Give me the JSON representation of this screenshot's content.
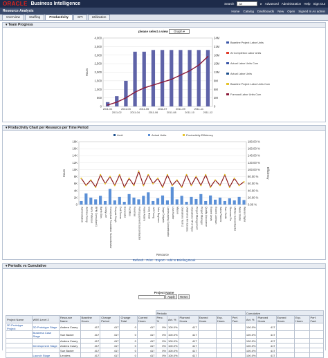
{
  "topbar": {
    "logo": "ORACLE",
    "app": "Business Intelligence",
    "search_label": "Search",
    "search_value": "All",
    "links": [
      "Advanced",
      "Administration",
      "Help",
      "Sign Out"
    ]
  },
  "navbar": {
    "title": "Resource Analysis",
    "items": [
      "Home",
      "Catalog",
      "Dashboards",
      "New",
      "Open",
      "Signed In As admin"
    ]
  },
  "tabs": [
    "Overview",
    "Staffing",
    "Productivity",
    "SPI",
    "Utilization"
  ],
  "team": {
    "header": "Team Progress",
    "view_label": "please select a view",
    "view_value": "Graph",
    "legend": [
      "Baseline Project Labor Units",
      "At Completion Labor Units",
      "Actual Labor Units Cum",
      "Actual Labor Units",
      "Baseline Project Labor Units Cum",
      "Forecast Labor Units Cum"
    ],
    "y_left_label": "Hours",
    "y_left_ticks": [
      "0",
      "500",
      "1,000",
      "1,500",
      "2,000",
      "2,500",
      "3,000",
      "3,500",
      "4,000"
    ],
    "y_right_ticks": [
      "0",
      "3M",
      "6M",
      "9M",
      "12M",
      "15M",
      "18M",
      "21M",
      "24M"
    ],
    "x_ticks": [
      "2011-01",
      "2011-02",
      "2011-03",
      "2011-04",
      "2011-05",
      "2011-06",
      "2011-07",
      "2011-08",
      "2011-09",
      "2011-10",
      "2011-11",
      "2011-12"
    ]
  },
  "prod": {
    "header": "Productivity Chart per Resource per Time Period",
    "legend": [
      "Limit",
      "Actual Units",
      "Productivity Efficiency"
    ],
    "y_left_label": "Hours",
    "y_right_label": "Efficiency",
    "x_label": "Resource",
    "y_left_ticks": [
      "0",
      "2K",
      "4K",
      "6K",
      "8K",
      "10K",
      "12K",
      "14K",
      "16K",
      "18K"
    ],
    "y_right_ticks": [
      "0.00 %",
      "20.00 %",
      "40.00 %",
      "60.00 %",
      "80.00 %",
      "100.00 %",
      "120.00 %",
      "140.00 %",
      "160.00 %",
      "180.00 %"
    ],
    "resources": [
      "Administration",
      "Andrea Casey",
      "Anne Peterson",
      "BPM Consultant 1",
      "Barth Gibs",
      "Cindy Lee",
      "Conceptual Foundation Subcontractor",
      "Deepak Singh",
      "Dell Server",
      "Excavator",
      "Facilities",
      "Foreman",
      "Fort Equipment Subcontractor",
      "Frank Adams",
      "Gary Nolan",
      "Jeff Young",
      "John Engineer",
      "Jorge Delgado",
      "Landscaping Subcontractor",
      "Lisa Hunter",
      "Mason",
      "Operations Tech 2",
      "Oklahoma Tim Dessau",
      "Operations VP of Oper",
      "Project Management",
      "Project Manager",
      "Quality Assurance",
      "Robert Lewis",
      "Robert Johnson",
      "Sales Planner",
      "Sam Smith",
      "Sherman Pie",
      "Utilities Subcontractor",
      "Wade Shafer",
      "Warren Taylor"
    ],
    "links": [
      "Refresh",
      "Print",
      "Export",
      "Add to Briefing Book"
    ]
  },
  "cum": {
    "header": "Periodic vs Cumulative",
    "prompt_label": "Project Name",
    "apply": "Apply",
    "reset": "Reset",
    "group_periodic": "Periodic",
    "group_cumulative": "Cumulative",
    "columns": [
      "Project Name",
      "WBS Level 2",
      "Resource Name",
      "Baseline Hours",
      "Change Period",
      "Change Total",
      "Current Hours",
      "Perc. %",
      "Act. %",
      "Planned Hours",
      "Earned Hours",
      "Exp. Hours",
      "Perf. Fact.",
      "Act. %",
      "Planned Hours",
      "Earned Hours",
      "Exp. Hours",
      "Perf. Fact."
    ],
    "project": "3D Prototype Project",
    "rows": [
      {
        "wbs": "3D Prototype Stage",
        "name": "Andrea Casey",
        "base": "417",
        "cp": "417",
        "ct": "0",
        "cur": "417",
        "perc": "0%",
        "act": "100.0%",
        "ph": "417",
        "act2": "100.0%",
        "ph2": "417"
      },
      {
        "wbs": "Business Case Stage",
        "name": "Sue Baxter",
        "base": "417",
        "cp": "417",
        "ct": "0",
        "cur": "417",
        "perc": "0%",
        "act": "100.0%",
        "ph": "417",
        "act2": "100.0%",
        "ph2": "417"
      },
      {
        "wbs": "",
        "name": "Andrea Casey",
        "base": "417",
        "cp": "417",
        "ct": "0",
        "cur": "417",
        "perc": "0%",
        "act": "100.0%",
        "ph": "417",
        "act2": "100.0%",
        "ph2": "417"
      },
      {
        "wbs": "Development Stage",
        "name": "Andrea Casey",
        "base": "417",
        "cp": "417",
        "ct": "0",
        "cur": "417",
        "perc": "0%",
        "act": "100.0%",
        "ph": "417",
        "act2": "100.0%",
        "ph2": "417"
      },
      {
        "wbs": "",
        "name": "Sue Baxter",
        "base": "417",
        "cp": "417",
        "ct": "0",
        "cur": "417",
        "perc": "0%",
        "act": "100.0%",
        "ph": "417",
        "act2": "100.0%",
        "ph2": "417"
      },
      {
        "wbs": "Launch Stage",
        "name": "Lenders",
        "base": "417",
        "cp": "417",
        "ct": "0",
        "cur": "417",
        "perc": "0%",
        "act": "100.0%",
        "ph": "417",
        "act2": "100.0%",
        "ph2": "417"
      }
    ]
  },
  "chart_data": [
    {
      "type": "bar",
      "title": "",
      "categories": [
        "2011-01",
        "2011-02",
        "2011-03",
        "2011-04",
        "2011-05",
        "2011-06",
        "2011-07",
        "2011-08",
        "2011-09",
        "2011-10",
        "2011-11",
        "2011-12"
      ],
      "ylabel": "Hours",
      "ylim": [
        0,
        4000
      ],
      "y2lim": [
        0,
        24000000
      ],
      "series": [
        {
          "name": "Actual Labor Units",
          "values": [
            250,
            600,
            1500,
            3200,
            3200,
            3300,
            3300,
            3300,
            3300,
            3300,
            3300,
            3300
          ]
        },
        {
          "name": "Forecast Labor Units Cum",
          "axis": "right",
          "values": [
            500000,
            1500000,
            3000000,
            5000000,
            6500000,
            7500000,
            8500000,
            9500000,
            11000000,
            12500000,
            14500000,
            17500000
          ]
        }
      ]
    },
    {
      "type": "bar",
      "title": "",
      "xlabel": "Resource",
      "ylabel": "Hours",
      "ylim": [
        0,
        18000
      ],
      "y2lim": [
        0,
        1.8
      ],
      "series": [
        {
          "name": "Actual Units",
          "values": [
            1000,
            3200,
            2000,
            1500,
            2500,
            1000,
            4500,
            1200,
            2200,
            800,
            3000,
            2000,
            1500,
            2500,
            3500,
            1000,
            1800,
            2600,
            1200,
            5000,
            1500,
            2500,
            800,
            2200,
            1600,
            3000,
            1000,
            2600,
            1400,
            2000,
            1000,
            1800,
            1200,
            2200,
            1300
          ]
        },
        {
          "name": "Productivity Efficiency",
          "axis": "right",
          "values": [
            0.75,
            0.55,
            0.7,
            0.5,
            0.85,
            0.6,
            0.8,
            0.55,
            0.85,
            0.5,
            0.75,
            0.55,
            0.95,
            0.55,
            0.85,
            0.6,
            0.75,
            0.5,
            0.85,
            0.55,
            0.7,
            0.5,
            0.85,
            0.55,
            0.8,
            0.55,
            0.85,
            0.5,
            0.7,
            0.55,
            0.85,
            0.5,
            0.75,
            0.55,
            0.65
          ]
        }
      ]
    }
  ]
}
